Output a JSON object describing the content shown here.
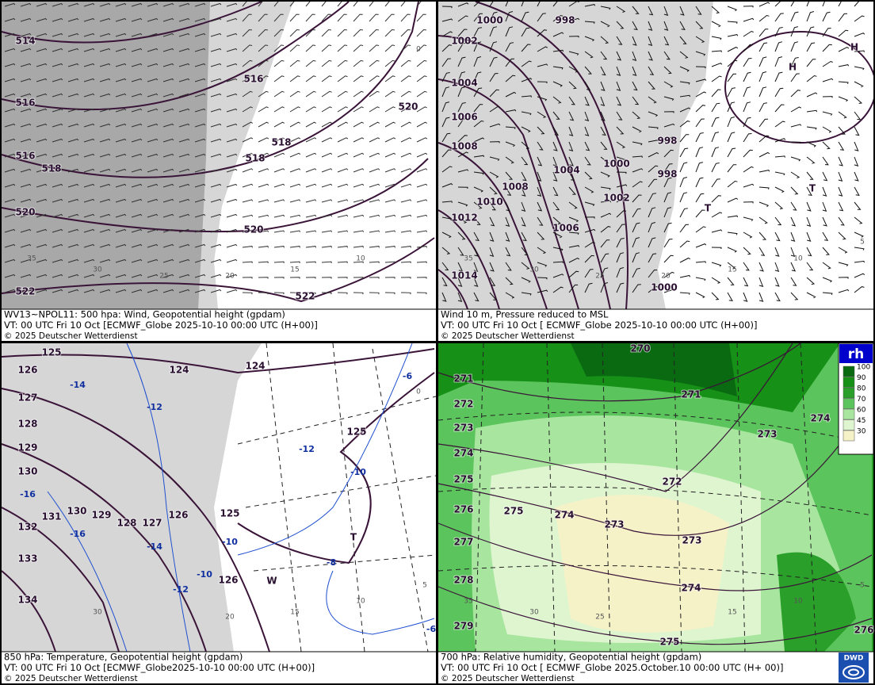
{
  "panels": [
    {
      "caption": [
        "WV13~NPOL11: 500 hpa: Wind, Geopotential height (gpdam)",
        "VT: 00 UTC Fri  10 Oct [ECMWF_Globe 2025-10-10 00:00 UTC  (H+00)]",
        "© 2025 Deutscher Wetterdienst"
      ],
      "contour_labels": [
        "514",
        "516",
        "516",
        "518",
        "520",
        "522",
        "516",
        "518",
        "518",
        "520",
        "522",
        "520"
      ],
      "grid_labels": [
        "0",
        "10",
        "15",
        "20",
        "25",
        "30",
        "35"
      ]
    },
    {
      "caption": [
        "Wind 10 m, Pressure reduced to MSL",
        "VT: 00 UTC Fri  10 Oct [ ECMWF_Globe 2025-10-10 00:00 UTC (H+00)]",
        "© 2025 Deutscher Wetterdienst"
      ],
      "contour_labels": [
        "1000",
        "998",
        "1002",
        "1004",
        "1006",
        "1008",
        "1010",
        "1012",
        "1014",
        "1008",
        "1004",
        "1006",
        "1000",
        "1002",
        "998",
        "998",
        "1000",
        "H",
        "H",
        "T",
        "T"
      ],
      "grid_labels": [
        "5",
        "10",
        "15",
        "20",
        "25",
        "30",
        "35"
      ]
    },
    {
      "caption": [
        "850 hPa:  Temperature, Geopotential height (gpdam)",
        "VT: 00 UTC Fri  10 Oct [ECMWF_Globe2025-10-10 00:00 UTC (H+00)]",
        "© 2025 Deutscher Wetterdienst"
      ],
      "contour_labels": [
        "125",
        "126",
        "127",
        "128",
        "129",
        "130",
        "132",
        "133",
        "134",
        "131",
        "130",
        "129",
        "128",
        "127",
        "126",
        "125",
        "124",
        "124",
        "125",
        "126",
        "T",
        "W"
      ],
      "temperature_labels": [
        "-14",
        "-12",
        "-12",
        "-10",
        "-16",
        "-16",
        "-14",
        "-10",
        "-10",
        "-12",
        "-8",
        "-6",
        "-6"
      ],
      "grid_labels": [
        "0",
        "5",
        "10",
        "15",
        "20",
        "30"
      ]
    },
    {
      "caption": [
        "700 hPa:  Relative humidity, Geopotential height (gpdam)",
        "VT: 00 UTC Fri  10 Oct [ ECMWF_Globe  2025.October.10 00:00 UTC (H+ 00)]",
        "© 2025 Deutscher Wetterdienst"
      ],
      "contour_labels": [
        "270",
        "271",
        "272",
        "273",
        "274",
        "275",
        "276",
        "277",
        "278",
        "279",
        "271",
        "272",
        "273",
        "274",
        "275",
        "274",
        "273",
        "273",
        "274",
        "275",
        "276"
      ],
      "grid_labels": [
        "5",
        "10",
        "15",
        "25",
        "30",
        "35"
      ]
    }
  ],
  "legend": {
    "title": "rh",
    "levels": [
      "100",
      "90",
      "80",
      "70",
      "60",
      "45",
      "30"
    ]
  },
  "logo": "DWD"
}
